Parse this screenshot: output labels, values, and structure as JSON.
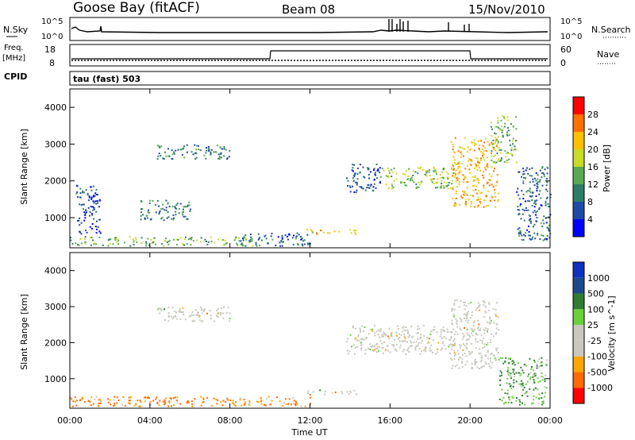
{
  "header": {
    "site": "Goose Bay (fitACF)",
    "beam": "Beam 08",
    "date": "15/Nov/2010"
  },
  "param_panels": {
    "nsky_label": "N.Sky",
    "nsearch_label": "N.Search",
    "freq_label_1": "Freq.",
    "freq_label_2": "[MHz]",
    "nave_label": "Nave",
    "cpid_label": "CPID",
    "cpid_text": "tau (fast) 503",
    "left_ticks_top": [
      "10^5",
      "10^0"
    ],
    "right_ticks_top": [
      "10^5",
      "10^0"
    ],
    "freq_ticks": [
      "18",
      "8"
    ],
    "nave_ticks": [
      "60",
      "0"
    ]
  },
  "colors": {
    "power": [
      "#0000ff",
      "#1f4aa6",
      "#2e7d66",
      "#5aaa55",
      "#c8dc28",
      "#ffc000",
      "#ff7000",
      "#ff0000"
    ],
    "velocity": [
      "#ff0000",
      "#ff6a00",
      "#ffa500",
      "#c8c8be",
      "#c8c8be",
      "#6bd13b",
      "#2e7d32",
      "#1f4a8a",
      "#1030c0"
    ]
  },
  "chart_data": [
    {
      "type": "heatmap",
      "title": "",
      "ylabel": "Slant Range [km]",
      "xlabel": "Time UT",
      "x_ticks": [
        "00:00",
        "04:00",
        "08:00",
        "12:00",
        "16:00",
        "20:00",
        "00:00"
      ],
      "y_ticks": [
        1000,
        2000,
        3000,
        4000
      ],
      "ylim": [
        180,
        4500
      ],
      "xlim_hours": [
        0,
        24
      ],
      "colorbar_label": "Power [dB]",
      "colorbar_ticks": [
        "4",
        "8",
        "12",
        "16",
        "20",
        "24",
        "28"
      ],
      "colorbar_range": [
        0,
        32
      ],
      "regions": [
        {
          "t": [
            0.0,
            9.5
          ],
          "r": [
            250,
            500
          ],
          "v": 14
        },
        {
          "t": [
            0.3,
            1.5
          ],
          "r": [
            550,
            1900
          ],
          "v": 6
        },
        {
          "t": [
            3.5,
            6.0
          ],
          "r": [
            950,
            1500
          ],
          "v": 10
        },
        {
          "t": [
            4.3,
            8.0
          ],
          "r": [
            2600,
            3000
          ],
          "v": 9
        },
        {
          "t": [
            8.5,
            12.0
          ],
          "r": [
            250,
            600
          ],
          "v": 8
        },
        {
          "t": [
            11.8,
            14.3
          ],
          "r": [
            560,
            700
          ],
          "v": 20
        },
        {
          "t": [
            13.8,
            15.5
          ],
          "r": [
            1700,
            2500
          ],
          "v": 7
        },
        {
          "t": [
            15.5,
            19.2
          ],
          "r": [
            1800,
            2400
          ],
          "v": 16
        },
        {
          "t": [
            19.0,
            21.4
          ],
          "r": [
            1300,
            3200
          ],
          "v": 22
        },
        {
          "t": [
            21.0,
            22.3
          ],
          "r": [
            2500,
            3800
          ],
          "v": 14
        },
        {
          "t": [
            22.3,
            24.0
          ],
          "r": [
            400,
            2400
          ],
          "v": 8
        }
      ]
    },
    {
      "type": "heatmap",
      "title": "",
      "ylabel": "Slant Range [km]",
      "xlabel": "Time UT",
      "x_ticks": [
        "00:00",
        "04:00",
        "08:00",
        "12:00",
        "16:00",
        "20:00",
        "00:00"
      ],
      "y_ticks": [
        1000,
        2000,
        3000,
        4000
      ],
      "ylim": [
        180,
        4500
      ],
      "xlim_hours": [
        0,
        24
      ],
      "colorbar_label": "Velocity [m s^-1]",
      "colorbar_ticks": [
        "1000",
        "500",
        "100",
        "25",
        "-25",
        "-100",
        "-500",
        "-1000"
      ],
      "regions": [
        {
          "t": [
            0.0,
            12.0
          ],
          "r": [
            250,
            520
          ],
          "v": -120
        },
        {
          "t": [
            4.3,
            8.0
          ],
          "r": [
            2600,
            3000
          ],
          "v": 0
        },
        {
          "t": [
            11.8,
            14.3
          ],
          "r": [
            560,
            700
          ],
          "v": 0
        },
        {
          "t": [
            13.8,
            19.2
          ],
          "r": [
            1700,
            2500
          ],
          "v": 0
        },
        {
          "t": [
            19.0,
            21.4
          ],
          "r": [
            1300,
            3200
          ],
          "v": 0
        },
        {
          "t": [
            21.4,
            23.8
          ],
          "r": [
            300,
            1600
          ],
          "v": 120
        }
      ]
    }
  ]
}
